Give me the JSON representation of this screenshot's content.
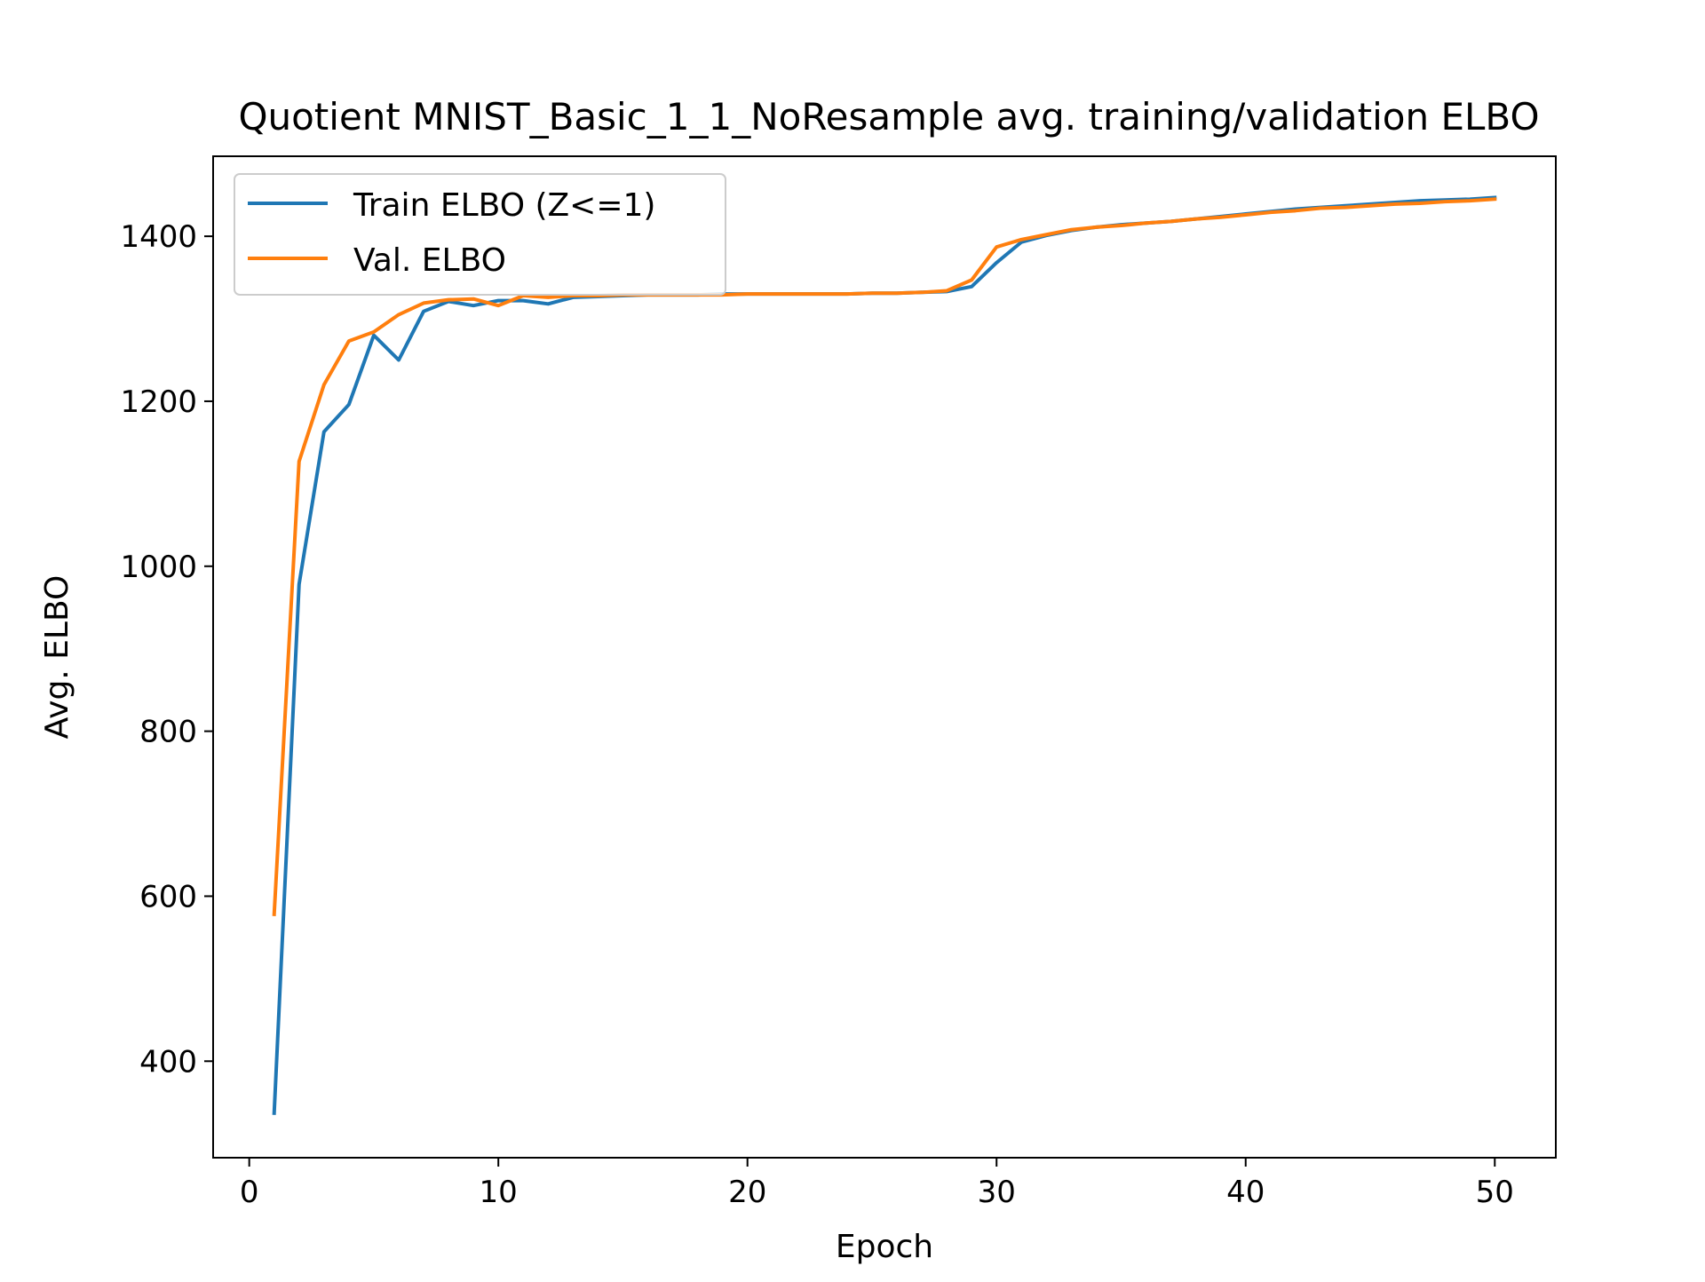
{
  "chart_data": {
    "type": "line",
    "title": "Quotient MNIST_Basic_1_1_NoResample avg. training/validation ELBO",
    "xlabel": "Epoch",
    "ylabel": "Avg. ELBO",
    "xlim": [
      -1.45,
      52.45
    ],
    "ylim": [
      283,
      1497
    ],
    "xticks": [
      0,
      10,
      20,
      30,
      40,
      50
    ],
    "yticks": [
      400,
      600,
      800,
      1000,
      1200,
      1400
    ],
    "grid": false,
    "legend_position": "upper-left",
    "x": [
      1,
      2,
      3,
      4,
      5,
      6,
      7,
      8,
      9,
      10,
      11,
      12,
      13,
      14,
      15,
      16,
      17,
      18,
      19,
      20,
      21,
      22,
      23,
      24,
      25,
      26,
      27,
      28,
      29,
      30,
      31,
      32,
      33,
      34,
      35,
      36,
      37,
      38,
      39,
      40,
      41,
      42,
      43,
      44,
      45,
      46,
      47,
      48,
      49,
      50
    ],
    "series": [
      {
        "name": "Train ELBO (Z<=1)",
        "color": "#1f77b4",
        "values": [
          337,
          978,
          1163,
          1196,
          1280,
          1250,
          1309,
          1321,
          1316,
          1322,
          1322,
          1318,
          1326,
          1327,
          1328,
          1329,
          1329,
          1329,
          1330,
          1330,
          1330,
          1330,
          1330,
          1330,
          1331,
          1331,
          1332,
          1333,
          1339,
          1368,
          1393,
          1401,
          1407,
          1411,
          1414,
          1416,
          1418,
          1421,
          1424,
          1427,
          1430,
          1433,
          1435,
          1437,
          1439,
          1441,
          1443,
          1444,
          1445,
          1447
        ]
      },
      {
        "name": "Val. ELBO",
        "color": "#ff7f0e",
        "values": [
          578,
          1127,
          1220,
          1273,
          1284,
          1305,
          1319,
          1323,
          1324,
          1316,
          1328,
          1326,
          1328,
          1328,
          1329,
          1329,
          1329,
          1329,
          1329,
          1330,
          1330,
          1330,
          1330,
          1330,
          1331,
          1331,
          1332,
          1334,
          1347,
          1387,
          1396,
          1402,
          1408,
          1411,
          1413,
          1416,
          1418,
          1421,
          1423,
          1426,
          1429,
          1431,
          1434,
          1435,
          1437,
          1439,
          1440,
          1442,
          1443,
          1445
        ]
      }
    ]
  }
}
